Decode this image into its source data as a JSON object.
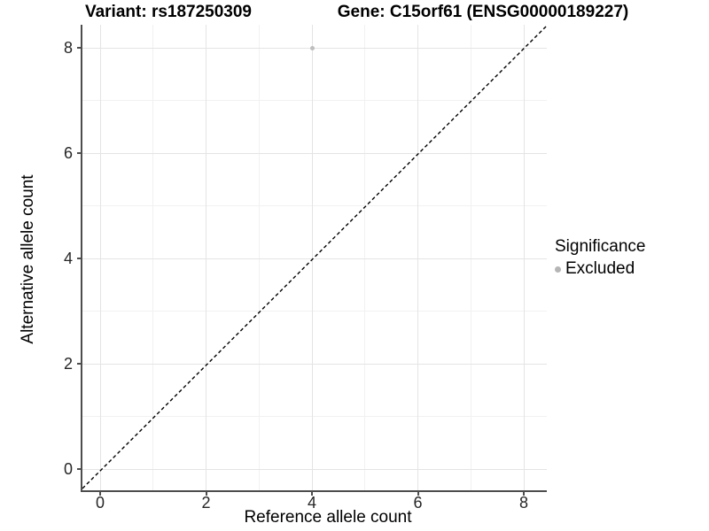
{
  "titles": {
    "variant_title": "Variant: rs187250309",
    "gene_title": "Gene: C15orf61 (ENSG00000189227)"
  },
  "chart_data": {
    "type": "scatter",
    "title_left": "Variant: rs187250309",
    "title_right": "Gene: C15orf61 (ENSG00000189227)",
    "xlabel": "Reference allele count",
    "ylabel": "Alternative allele count",
    "xlim": [
      -0.35,
      8.45
    ],
    "ylim": [
      -0.45,
      8.45
    ],
    "x_major_ticks": [
      0,
      2,
      4,
      6,
      8
    ],
    "y_major_ticks": [
      0,
      2,
      4,
      6,
      8
    ],
    "x_minor_ticks": [
      1,
      3,
      5,
      7
    ],
    "y_minor_ticks": [
      1,
      3,
      5,
      7
    ],
    "grid": "on",
    "legend_position": "right",
    "series": [
      {
        "name": "Excluded",
        "marker": "circle",
        "color": "#bebebe",
        "points": [
          {
            "x": 4,
            "y": 8
          }
        ]
      }
    ],
    "reference_line": {
      "kind": "identity y=x",
      "style": "dashed",
      "color": "#000000"
    },
    "legend": {
      "title": "Significance",
      "entries": [
        {
          "label": "Excluded",
          "color": "#b5b5b5"
        }
      ]
    }
  },
  "colors": {
    "background": "#ffffff",
    "grid_major": "#e4e4e4",
    "grid_minor": "#f1f1f1",
    "axis_line": "#4d4d4d",
    "tick_text": "#262626",
    "title_text": "#000000",
    "point": "#bebebe"
  }
}
